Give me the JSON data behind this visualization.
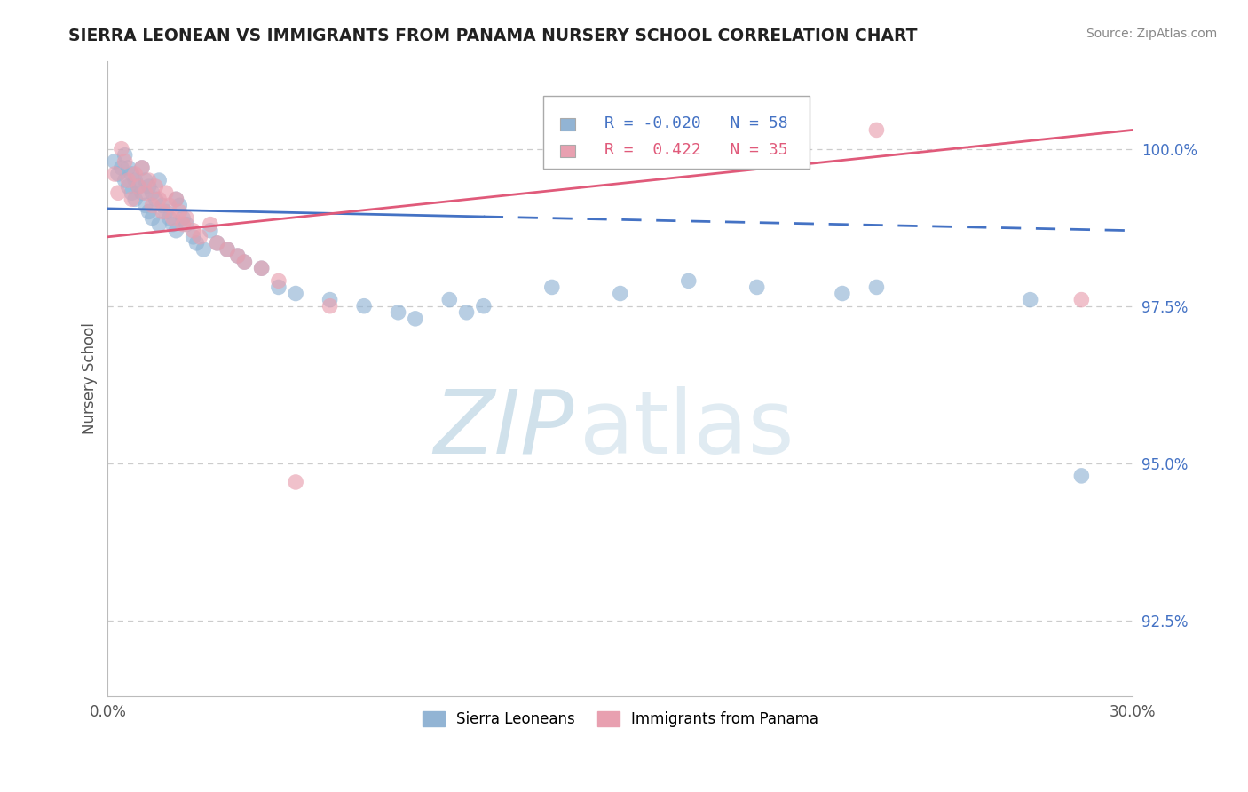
{
  "title": "SIERRA LEONEAN VS IMMIGRANTS FROM PANAMA NURSERY SCHOOL CORRELATION CHART",
  "source": "Source: ZipAtlas.com",
  "ylabel": "Nursery School",
  "yticks": [
    92.5,
    95.0,
    97.5,
    100.0
  ],
  "ytick_labels": [
    "92.5%",
    "95.0%",
    "97.5%",
    "100.0%"
  ],
  "xmin": 0.0,
  "xmax": 30.0,
  "ymin": 91.3,
  "ymax": 101.4,
  "blue_R": -0.02,
  "blue_N": 58,
  "pink_R": 0.422,
  "pink_N": 35,
  "blue_color": "#92b4d4",
  "pink_color": "#e8a0b0",
  "blue_line_color": "#4472c4",
  "pink_line_color": "#e05a7a",
  "legend_label_blue": "Sierra Leoneans",
  "legend_label_pink": "Immigrants from Panama",
  "watermark_zip": "ZIP",
  "watermark_atlas": "atlas",
  "blue_scatter_x": [
    0.2,
    0.3,
    0.4,
    0.5,
    0.5,
    0.6,
    0.6,
    0.7,
    0.7,
    0.8,
    0.8,
    0.9,
    1.0,
    1.0,
    1.1,
    1.1,
    1.2,
    1.2,
    1.3,
    1.3,
    1.4,
    1.5,
    1.5,
    1.6,
    1.7,
    1.8,
    1.9,
    2.0,
    2.0,
    2.1,
    2.2,
    2.3,
    2.5,
    2.6,
    2.8,
    3.0,
    3.2,
    3.5,
    3.8,
    4.0,
    4.5,
    5.0,
    5.5,
    6.5,
    7.5,
    8.5,
    9.0,
    10.0,
    10.5,
    11.0,
    13.0,
    15.0,
    17.0,
    19.0,
    21.5,
    22.5,
    27.0,
    28.5
  ],
  "blue_scatter_y": [
    99.8,
    99.6,
    99.7,
    99.9,
    99.5,
    99.7,
    99.4,
    99.6,
    99.3,
    99.5,
    99.2,
    99.4,
    99.7,
    99.3,
    99.5,
    99.1,
    99.4,
    99.0,
    99.3,
    98.9,
    99.2,
    99.5,
    98.8,
    99.1,
    99.0,
    98.9,
    98.8,
    99.2,
    98.7,
    99.1,
    98.9,
    98.8,
    98.6,
    98.5,
    98.4,
    98.7,
    98.5,
    98.4,
    98.3,
    98.2,
    98.1,
    97.8,
    97.7,
    97.6,
    97.5,
    97.4,
    97.3,
    97.6,
    97.4,
    97.5,
    97.8,
    97.7,
    97.9,
    97.8,
    97.7,
    97.8,
    97.6,
    94.8
  ],
  "pink_scatter_x": [
    0.2,
    0.3,
    0.4,
    0.5,
    0.6,
    0.7,
    0.8,
    0.9,
    1.0,
    1.1,
    1.2,
    1.3,
    1.4,
    1.5,
    1.6,
    1.7,
    1.8,
    1.9,
    2.0,
    2.1,
    2.2,
    2.3,
    2.5,
    2.7,
    3.0,
    3.2,
    3.5,
    3.8,
    4.0,
    4.5,
    5.0,
    5.5,
    6.5,
    22.5,
    28.5
  ],
  "pink_scatter_y": [
    99.6,
    99.3,
    100.0,
    99.8,
    99.5,
    99.2,
    99.6,
    99.4,
    99.7,
    99.3,
    99.5,
    99.1,
    99.4,
    99.2,
    99.0,
    99.3,
    99.1,
    98.9,
    99.2,
    99.0,
    98.8,
    98.9,
    98.7,
    98.6,
    98.8,
    98.5,
    98.4,
    98.3,
    98.2,
    98.1,
    97.9,
    94.7,
    97.5,
    100.3,
    97.6
  ],
  "blue_line_x_start": 0.0,
  "blue_line_x_solid_end": 11.0,
  "blue_line_x_end": 30.0,
  "blue_line_y_at_0": 99.05,
  "blue_line_y_at_30": 98.7,
  "pink_line_y_at_0": 98.6,
  "pink_line_y_at_30": 100.3
}
